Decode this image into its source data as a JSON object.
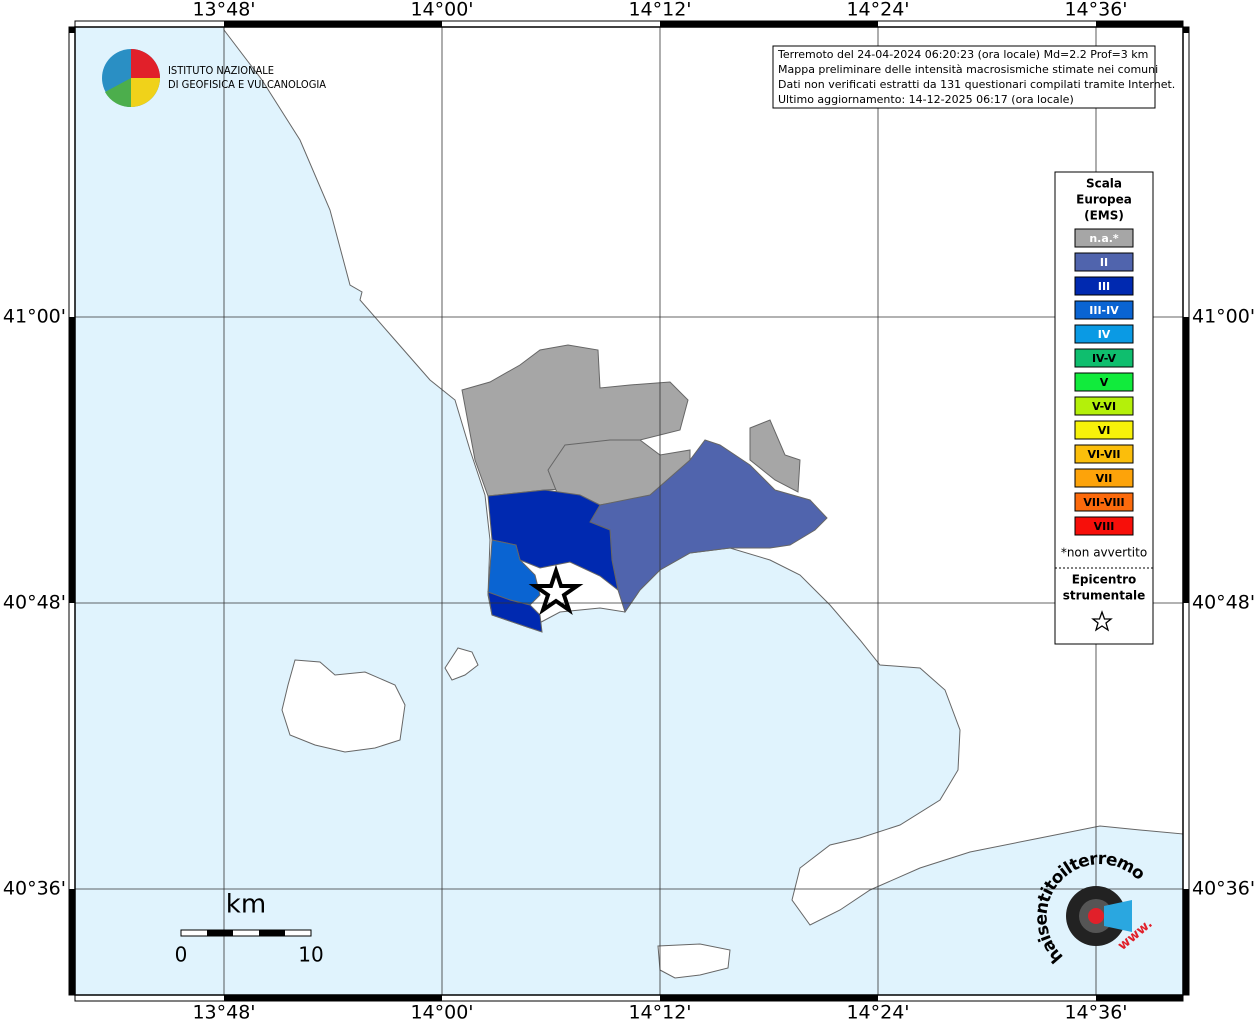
{
  "info": {
    "lines": [
      "Terremoto del 24-04-2024 06:20:23 (ora locale) Md=2.2 Prof=3 km",
      "Mappa preliminare delle intensità macrosismiche stimate nei comuni",
      "Dati non verificati estratti da 131 questionari compilati tramite Internet.",
      "Ultimo aggiornamento: 14-12-2025 06:17 (ora locale)"
    ]
  },
  "logo": {
    "line1": "ISTITUTO NAZIONALE",
    "line2": "DI GEOFISICA E VULCANOLOGIA"
  },
  "axes": {
    "longitudes": [
      "13°48'",
      "14°00'",
      "14°12'",
      "14°24'",
      "14°36'"
    ],
    "latitudes": [
      "41°00'",
      "40°48'",
      "40°36'"
    ]
  },
  "legend": {
    "title_lines": [
      "Scala",
      "Europea",
      "(EMS)"
    ],
    "items": [
      {
        "label": "n.a.*",
        "color": "#a6a6a6",
        "text_color": "#ffffff"
      },
      {
        "label": "II",
        "color": "#5064ad",
        "text_color": "#ffffff"
      },
      {
        "label": "III",
        "color": "#0029b0",
        "text_color": "#ffffff"
      },
      {
        "label": "III-IV",
        "color": "#0a64d2",
        "text_color": "#ffffff"
      },
      {
        "label": "IV",
        "color": "#0a9ae4",
        "text_color": "#ffffff"
      },
      {
        "label": "IV-V",
        "color": "#0fbe6e",
        "text_color": "#000000"
      },
      {
        "label": "V",
        "color": "#11eb3c",
        "text_color": "#000000"
      },
      {
        "label": "V-VI",
        "color": "#b4f00a",
        "text_color": "#000000"
      },
      {
        "label": "VI",
        "color": "#f7f20a",
        "text_color": "#000000"
      },
      {
        "label": "VI-VII",
        "color": "#fbbe0b",
        "text_color": "#000000"
      },
      {
        "label": "VII",
        "color": "#fda30a",
        "text_color": "#000000"
      },
      {
        "label": "VII-VIII",
        "color": "#fc6a0c",
        "text_color": "#000000"
      },
      {
        "label": "VIII",
        "color": "#f70f0a",
        "text_color": "#000000"
      }
    ],
    "footnote": "*non avvertito",
    "epicenter_lines": [
      "Epicentro",
      "strumentale"
    ]
  },
  "scale_bar": {
    "unit": "km",
    "start": 0,
    "end": 10
  },
  "badge": {
    "site": "haisentitoilterremoto.it",
    "prefix": "www."
  }
}
